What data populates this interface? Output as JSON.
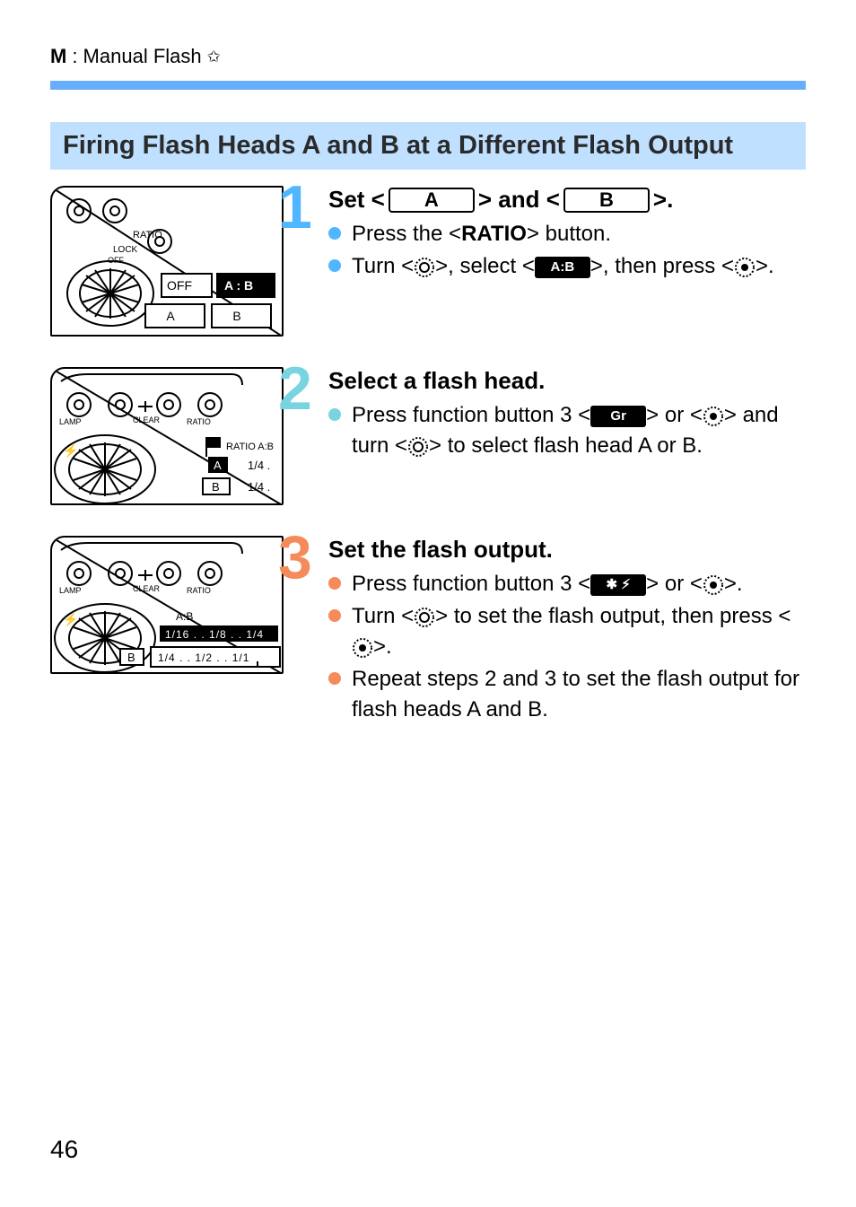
{
  "colors": {
    "headerRule": "#66aefc",
    "sectionBg": "#bfe0ff",
    "step1": "#4fb6ff",
    "step2": "#77d4e0",
    "step3": "#f58b5a",
    "text": "#000000",
    "bg": "#ffffff"
  },
  "header": {
    "mode": "M",
    "label": ": Manual Flash",
    "starGlyph": "✩"
  },
  "sectionTitle": "Firing Flash Heads A and B at a Different Flash Output",
  "steps": [
    {
      "num": "1",
      "titleParts": {
        "prefix": "Set <",
        "capA": "A",
        "mid": "> and <",
        "capB": "B",
        "suffix": ">."
      },
      "bullets": [
        {
          "segments": [
            {
              "t": "text",
              "v": "Press the <"
            },
            {
              "t": "bold",
              "v": "RATIO"
            },
            {
              "t": "text",
              "v": "> button."
            }
          ]
        },
        {
          "segments": [
            {
              "t": "text",
              "v": "Turn <"
            },
            {
              "t": "dial-ring"
            },
            {
              "t": "text",
              "v": ">, select <"
            },
            {
              "t": "chip",
              "v": "A:B"
            },
            {
              "t": "text",
              "v": ">, then press <"
            },
            {
              "t": "dial-dot"
            },
            {
              "t": "text",
              "v": ">."
            }
          ]
        }
      ]
    },
    {
      "num": "2",
      "title": "Select a flash head.",
      "bullets": [
        {
          "segments": [
            {
              "t": "text",
              "v": "Press function button 3 <"
            },
            {
              "t": "chip",
              "v": "Gr"
            },
            {
              "t": "text",
              "v": "> or <"
            },
            {
              "t": "dial-dot"
            },
            {
              "t": "text",
              "v": "> and turn <"
            },
            {
              "t": "dial-ring"
            },
            {
              "t": "text",
              "v": "> to select flash head A or B."
            }
          ]
        }
      ]
    },
    {
      "num": "3",
      "title": "Set the flash output.",
      "bullets": [
        {
          "segments": [
            {
              "t": "text",
              "v": "Press function button 3 <"
            },
            {
              "t": "chip",
              "v": "✱ ⚡︎"
            },
            {
              "t": "text",
              "v": "> or <"
            },
            {
              "t": "dial-dot"
            },
            {
              "t": "text",
              "v": ">."
            }
          ]
        },
        {
          "segments": [
            {
              "t": "text",
              "v": "Turn <"
            },
            {
              "t": "dial-ring"
            },
            {
              "t": "text",
              "v": "> to set the flash output, then press <"
            },
            {
              "t": "dial-dot"
            },
            {
              "t": "text",
              "v": ">."
            }
          ]
        },
        {
          "segments": [
            {
              "t": "text",
              "v": "Repeat steps 2 and 3 to set the flash output for flash heads A and B."
            }
          ]
        }
      ]
    }
  ],
  "thumbs": {
    "t1": {
      "labels": {
        "ratio": "RATIO",
        "lock": "LOCK",
        "off": "OFF",
        "a": "A",
        "b": "B",
        "offtile": "OFF",
        "ab": "A : B"
      }
    },
    "t2": {
      "labels": {
        "clear": "CLEAR",
        "lamp": "LAMP",
        "ratio": "RATIO",
        "ratioab": "RATIO A:B",
        "a": "A",
        "b": "B",
        "q1": "1/4 .",
        "q2": "1/4 ."
      }
    },
    "t3": {
      "labels": {
        "clear": "CLEAR",
        "lamp": "LAMP",
        "ratio": "RATIO",
        "ab": "A:B",
        "b": "B",
        "rowTop": "1/16 . . 1/8 . . 1/4",
        "rowBot": "1/4 . . 1/2 . . 1/1"
      }
    }
  },
  "pageNumber": "46"
}
